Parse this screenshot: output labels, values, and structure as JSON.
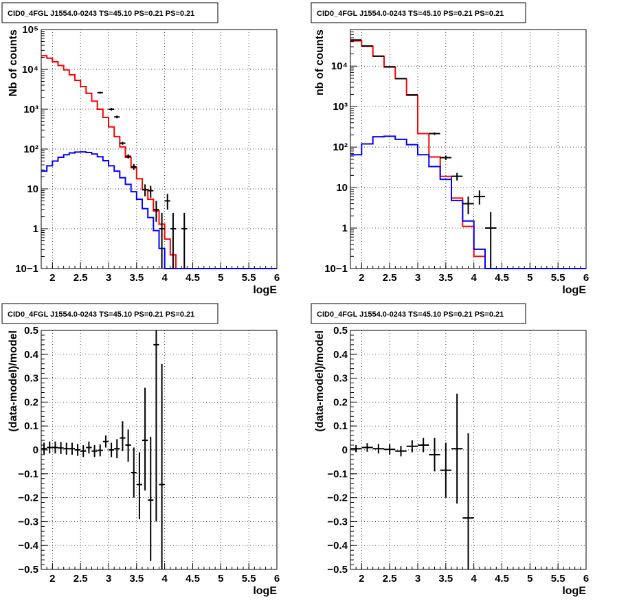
{
  "chart_data": [
    {
      "type": "step-histogram-log",
      "title": "CID0_4FGL J1554.0-0243 TS=45.10 PS=0.21 PS=0.21",
      "xlabel": "logE",
      "ylabel": "Nb of counts",
      "xlim": [
        1.8,
        6.0
      ],
      "ylim": [
        0.1,
        100000
      ],
      "ylog": true,
      "grid": true,
      "xticks": [
        2,
        2.5,
        3,
        3.5,
        4,
        4.5,
        5,
        5.5,
        6
      ],
      "xtick_labels": [
        "2",
        "2.5",
        "3",
        "3.5",
        "4",
        "4.5",
        "5",
        "5.5",
        "6"
      ],
      "yticks": [
        0.1,
        1,
        10,
        100,
        1000,
        10000,
        100000
      ],
      "ytick_labels": [
        "10−1",
        "1",
        "10",
        "10²",
        "10³",
        "10⁴",
        "10⁵"
      ],
      "bin_width": 0.1,
      "bins_start": 1.8,
      "series": [
        {
          "color": "#ff0000",
          "style": "step",
          "values": [
            22000,
            19000,
            15500,
            12500,
            9700,
            7300,
            5300,
            3700,
            2500,
            1600,
            1000,
            620,
            360,
            205,
            113,
            62,
            34,
            18,
            9.6,
            5.5,
            2.8,
            1.3,
            0.55,
            0.22,
            0.09,
            0.06,
            0.06,
            0.06,
            0.06,
            0.06,
            0.06,
            0.06,
            0.06,
            0.06,
            0.06,
            0.06,
            0.06,
            0.06,
            0.06,
            0.06,
            0.06,
            0.06
          ]
        },
        {
          "color": "#0000ff",
          "style": "step",
          "values": [
            28,
            38,
            50,
            62,
            72,
            80,
            84,
            85,
            82,
            75,
            64,
            51,
            38,
            28,
            19,
            13,
            8.5,
            5.5,
            3.2,
            1.9,
            0.9,
            0.32,
            0.09,
            0.09,
            0.09,
            0.09,
            0.09,
            0.09,
            0.09,
            0.09,
            0.09,
            0.09,
            0.09,
            0.09,
            0.09,
            0.09,
            0.09,
            0.09,
            0.09,
            0.09,
            0.09,
            0.09
          ]
        }
      ],
      "points": [
        {
          "x": 2.85,
          "y": 2600,
          "ylo": 2450,
          "yhi": 2750
        },
        {
          "x": 3.05,
          "y": 1000,
          "ylo": 920,
          "yhi": 1080
        },
        {
          "x": 3.15,
          "y": 640,
          "ylo": 590,
          "yhi": 690
        },
        {
          "x": 3.25,
          "y": 140,
          "ylo": 128,
          "yhi": 152
        },
        {
          "x": 3.35,
          "y": 66,
          "ylo": 58,
          "yhi": 74
        },
        {
          "x": 3.45,
          "y": 36,
          "ylo": 30,
          "yhi": 42
        },
        {
          "x": 3.65,
          "y": 9.5,
          "ylo": 6.5,
          "yhi": 13
        },
        {
          "x": 3.75,
          "y": 9,
          "ylo": 6,
          "yhi": 12
        },
        {
          "x": 3.85,
          "y": 3,
          "ylo": 1.5,
          "yhi": 5
        },
        {
          "x": 4.05,
          "y": 5,
          "ylo": 3,
          "yhi": 7.5
        },
        {
          "x": 4.15,
          "y": 1,
          "ylo": 0.1,
          "yhi": 2.5
        },
        {
          "x": 4.35,
          "y": 1,
          "ylo": 0.1,
          "yhi": 2.5
        },
        {
          "x": 3.95,
          "y": 1,
          "ylo": 0.1,
          "yhi": 2.5
        }
      ]
    },
    {
      "type": "step-histogram-log",
      "title": "CID0_4FGL J1554.0-0243 TS=45.10 PS=0.21 PS=0.21",
      "xlabel": "logE",
      "ylabel": "nb of counts",
      "xlim": [
        1.8,
        6.0
      ],
      "ylim": [
        0.1,
        80000
      ],
      "ylog": true,
      "grid": true,
      "xticks": [
        2,
        2.5,
        3,
        3.5,
        4,
        4.5,
        5,
        5.5,
        6
      ],
      "xtick_labels": [
        "2",
        "2.5",
        "3",
        "3.5",
        "4",
        "4.5",
        "5",
        "5.5",
        "6"
      ],
      "yticks": [
        0.1,
        1,
        10,
        100,
        1000,
        10000
      ],
      "ytick_labels": [
        "10−1",
        "1",
        "10",
        "10²",
        "10³",
        "10⁴"
      ],
      "bin_width": 0.2,
      "bins_start": 1.8,
      "series": [
        {
          "color": "#ff0000",
          "style": "step",
          "values": [
            42000,
            31000,
            17500,
            9500,
            4900,
            1900,
            215,
            57,
            19,
            5.5,
            1.1,
            0.2,
            0.06,
            0.06,
            0.06,
            0.06,
            0.06,
            0.06,
            0.06,
            0.06,
            0.06
          ]
        },
        {
          "color": "#0000ff",
          "style": "step",
          "values": [
            65,
            120,
            180,
            185,
            155,
            115,
            65,
            33,
            16,
            4.8,
            1.5,
            0.3,
            0.06,
            0.06,
            0.06,
            0.06,
            0.06,
            0.06,
            0.06,
            0.06,
            0.06
          ]
        }
      ],
      "points": [
        {
          "x": 1.9,
          "y": 44000,
          "ylo": 43000,
          "yhi": 45000
        },
        {
          "x": 2.1,
          "y": 31500,
          "ylo": 31000,
          "yhi": 32000
        },
        {
          "x": 2.3,
          "y": 17600,
          "ylo": 17300,
          "yhi": 17900
        },
        {
          "x": 2.5,
          "y": 9600,
          "ylo": 9400,
          "yhi": 9800
        },
        {
          "x": 2.7,
          "y": 4900,
          "ylo": 4800,
          "yhi": 5000
        },
        {
          "x": 2.9,
          "y": 1950,
          "ylo": 1900,
          "yhi": 2000
        },
        {
          "x": 3.3,
          "y": 215,
          "ylo": 200,
          "yhi": 230
        },
        {
          "x": 3.5,
          "y": 55,
          "ylo": 48,
          "yhi": 62
        },
        {
          "x": 3.7,
          "y": 19,
          "ylo": 15,
          "yhi": 23
        },
        {
          "x": 3.9,
          "y": 4,
          "ylo": 2.2,
          "yhi": 6
        },
        {
          "x": 4.1,
          "y": 6,
          "ylo": 3.8,
          "yhi": 8.5
        },
        {
          "x": 4.3,
          "y": 1,
          "ylo": 0.1,
          "yhi": 2.5
        }
      ]
    },
    {
      "type": "scatter-errorbars",
      "title": "CID0_4FGL J1554.0-0243 TS=45.10 PS=0.21 PS=0.21",
      "xlabel": "logE",
      "ylabel": "(data-model)/model",
      "xlim": [
        1.8,
        6.0
      ],
      "ylim": [
        -0.5,
        0.5
      ],
      "grid": true,
      "xticks": [
        2,
        2.5,
        3,
        3.5,
        4,
        4.5,
        5,
        5.5,
        6
      ],
      "xtick_labels": [
        "2",
        "2.5",
        "3",
        "3.5",
        "4",
        "4.5",
        "5",
        "5.5",
        "6"
      ],
      "yticks": [
        -0.5,
        -0.4,
        -0.3,
        -0.2,
        -0.1,
        0,
        0.1,
        0.2,
        0.3,
        0.4,
        0.5
      ],
      "ytick_labels": [
        "−0.5",
        "−0.4",
        "−0.3",
        "−0.2",
        "−0.1",
        "0",
        "0.1",
        "0.2",
        "0.3",
        "0.4",
        "0.5"
      ],
      "bin_width": 0.1,
      "points": [
        {
          "x": 1.85,
          "y": 0.005,
          "ylo": -0.02,
          "yhi": 0.03
        },
        {
          "x": 1.95,
          "y": 0.01,
          "ylo": -0.015,
          "yhi": 0.035
        },
        {
          "x": 2.05,
          "y": 0.01,
          "ylo": -0.015,
          "yhi": 0.035
        },
        {
          "x": 2.15,
          "y": 0.008,
          "ylo": -0.017,
          "yhi": 0.033
        },
        {
          "x": 2.25,
          "y": 0.005,
          "ylo": -0.02,
          "yhi": 0.03
        },
        {
          "x": 2.35,
          "y": 0.005,
          "ylo": -0.02,
          "yhi": 0.03
        },
        {
          "x": 2.45,
          "y": 0.0,
          "ylo": -0.025,
          "yhi": 0.025
        },
        {
          "x": 2.55,
          "y": -0.005,
          "ylo": -0.03,
          "yhi": 0.02
        },
        {
          "x": 2.65,
          "y": 0.01,
          "ylo": -0.015,
          "yhi": 0.035
        },
        {
          "x": 2.75,
          "y": -0.005,
          "ylo": -0.03,
          "yhi": 0.02
        },
        {
          "x": 2.85,
          "y": -0.002,
          "ylo": -0.027,
          "yhi": 0.023
        },
        {
          "x": 2.95,
          "y": 0.035,
          "ylo": 0.01,
          "yhi": 0.06
        },
        {
          "x": 3.05,
          "y": 0.0,
          "ylo": -0.03,
          "yhi": 0.03
        },
        {
          "x": 3.15,
          "y": 0.005,
          "ylo": -0.035,
          "yhi": 0.045
        },
        {
          "x": 3.25,
          "y": 0.05,
          "ylo": -0.005,
          "yhi": 0.12
        },
        {
          "x": 3.35,
          "y": 0.02,
          "ylo": -0.05,
          "yhi": 0.085
        },
        {
          "x": 3.45,
          "y": -0.095,
          "ylo": -0.2,
          "yhi": 0.01
        },
        {
          "x": 3.55,
          "y": -0.145,
          "ylo": -0.29,
          "yhi": -0.01
        },
        {
          "x": 3.65,
          "y": 0.04,
          "ylo": -0.17,
          "yhi": 0.26
        },
        {
          "x": 3.75,
          "y": -0.21,
          "ylo": -0.465,
          "yhi": 0.055
        },
        {
          "x": 3.85,
          "y": 0.44,
          "ylo": -0.3,
          "yhi": 0.5
        },
        {
          "x": 3.95,
          "y": -0.145,
          "ylo": -0.5,
          "yhi": 0.36
        }
      ]
    },
    {
      "type": "scatter-errorbars",
      "title": "CID0_4FGL J1554.0-0243 TS=45.10 PS=0.21 PS=0.21",
      "xlabel": "logE",
      "ylabel": "(data-model)/model",
      "xlim": [
        1.8,
        6.0
      ],
      "ylim": [
        -0.5,
        0.5
      ],
      "grid": true,
      "xticks": [
        2,
        2.5,
        3,
        3.5,
        4,
        4.5,
        5,
        5.5,
        6
      ],
      "xtick_labels": [
        "2",
        "2.5",
        "3",
        "3.5",
        "4",
        "4.5",
        "5",
        "5.5",
        "6"
      ],
      "yticks": [
        -0.5,
        -0.4,
        -0.3,
        -0.2,
        -0.1,
        0,
        0.1,
        0.2,
        0.3,
        0.4,
        0.5
      ],
      "ytick_labels": [
        "−0.5",
        "−0.4",
        "−0.3",
        "−0.2",
        "−0.1",
        "0",
        "0.1",
        "0.2",
        "0.3",
        "0.4",
        "0.5"
      ],
      "bin_width": 0.2,
      "points": [
        {
          "x": 1.9,
          "y": 0.005,
          "ylo": -0.01,
          "yhi": 0.02
        },
        {
          "x": 2.1,
          "y": 0.01,
          "ylo": -0.008,
          "yhi": 0.028
        },
        {
          "x": 2.3,
          "y": 0.005,
          "ylo": -0.015,
          "yhi": 0.025
        },
        {
          "x": 2.5,
          "y": 0.002,
          "ylo": -0.02,
          "yhi": 0.024
        },
        {
          "x": 2.7,
          "y": -0.005,
          "ylo": -0.027,
          "yhi": 0.017
        },
        {
          "x": 2.9,
          "y": 0.015,
          "ylo": -0.01,
          "yhi": 0.04
        },
        {
          "x": 3.1,
          "y": 0.02,
          "ylo": -0.01,
          "yhi": 0.05
        },
        {
          "x": 3.3,
          "y": -0.02,
          "ylo": -0.09,
          "yhi": 0.05
        },
        {
          "x": 3.5,
          "y": -0.085,
          "ylo": -0.2,
          "yhi": 0.03
        },
        {
          "x": 3.7,
          "y": 0.005,
          "ylo": -0.225,
          "yhi": 0.235
        },
        {
          "x": 3.9,
          "y": -0.285,
          "ylo": -0.5,
          "yhi": 0.07
        }
      ]
    }
  ]
}
